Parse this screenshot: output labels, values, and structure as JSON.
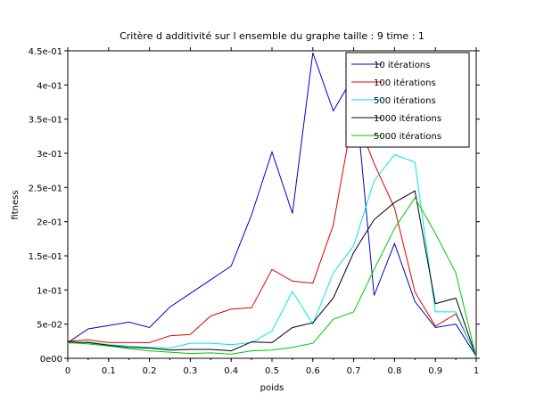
{
  "chart_data": {
    "type": "line",
    "title": "Critère d additivité sur l ensemble du graphe taille : 9 time : 1",
    "xlabel": "poids",
    "ylabel": "fitness",
    "xlim": [
      0,
      1
    ],
    "ylim": [
      0,
      0.45
    ],
    "grid": false,
    "legend_position": "top-right",
    "x_ticks": [
      {
        "value": 0,
        "label": "0"
      },
      {
        "value": 0.1,
        "label": "0.1"
      },
      {
        "value": 0.2,
        "label": "0.2"
      },
      {
        "value": 0.3,
        "label": "0.3"
      },
      {
        "value": 0.4,
        "label": "0.4"
      },
      {
        "value": 0.5,
        "label": "0.5"
      },
      {
        "value": 0.6,
        "label": "0.6"
      },
      {
        "value": 0.7,
        "label": "0.7"
      },
      {
        "value": 0.8,
        "label": "0.8"
      },
      {
        "value": 0.9,
        "label": "0.9"
      },
      {
        "value": 1,
        "label": "1"
      }
    ],
    "y_ticks": [
      {
        "value": 0,
        "label": "0e00"
      },
      {
        "value": 0.05,
        "label": "5e-02"
      },
      {
        "value": 0.1,
        "label": "1e-01"
      },
      {
        "value": 0.15,
        "label": "1.5e-01"
      },
      {
        "value": 0.2,
        "label": "2e-01"
      },
      {
        "value": 0.25,
        "label": "2.5e-01"
      },
      {
        "value": 0.3,
        "label": "3e-01"
      },
      {
        "value": 0.35,
        "label": "3.5e-01"
      },
      {
        "value": 0.4,
        "label": "4e-01"
      },
      {
        "value": 0.45,
        "label": "4.5e-01"
      }
    ],
    "x": [
      0,
      0.05,
      0.1,
      0.15,
      0.2,
      0.25,
      0.3,
      0.35,
      0.4,
      0.45,
      0.5,
      0.55,
      0.6,
      0.65,
      0.7,
      0.75,
      0.8,
      0.85,
      0.9,
      0.95,
      1
    ],
    "series": [
      {
        "name": "10 itérations",
        "color": "#0000c8",
        "values": [
          0.023,
          0.043,
          0.048,
          0.053,
          0.045,
          0.075,
          0.095,
          0.115,
          0.135,
          0.21,
          0.302,
          0.212,
          0.447,
          0.362,
          0.413,
          0.092,
          0.168,
          0.083,
          0.045,
          0.05,
          0.003
        ]
      },
      {
        "name": "100 itérations",
        "color": "#e00000",
        "values": [
          0.025,
          0.027,
          0.023,
          0.023,
          0.023,
          0.033,
          0.035,
          0.062,
          0.072,
          0.074,
          0.13,
          0.113,
          0.11,
          0.195,
          0.362,
          0.285,
          0.22,
          0.097,
          0.047,
          0.065,
          0.004
        ]
      },
      {
        "name": "500 itérations",
        "color": "#00e6e6",
        "values": [
          0.022,
          0.024,
          0.02,
          0.018,
          0.016,
          0.015,
          0.022,
          0.022,
          0.02,
          0.023,
          0.04,
          0.098,
          0.05,
          0.125,
          0.165,
          0.26,
          0.298,
          0.287,
          0.068,
          0.068,
          0.003
        ]
      },
      {
        "name": "1000 itérations",
        "color": "#000000",
        "values": [
          0.024,
          0.023,
          0.019,
          0.016,
          0.015,
          0.012,
          0.013,
          0.013,
          0.011,
          0.024,
          0.023,
          0.045,
          0.052,
          0.088,
          0.155,
          0.203,
          0.228,
          0.245,
          0.08,
          0.088,
          0.002
        ]
      },
      {
        "name": "5000 itérations",
        "color": "#00c800",
        "values": [
          0.023,
          0.021,
          0.018,
          0.014,
          0.011,
          0.009,
          0.007,
          0.008,
          0.006,
          0.011,
          0.012,
          0.016,
          0.022,
          0.057,
          0.068,
          0.13,
          0.19,
          0.235,
          0.183,
          0.125,
          0.001
        ]
      }
    ]
  }
}
